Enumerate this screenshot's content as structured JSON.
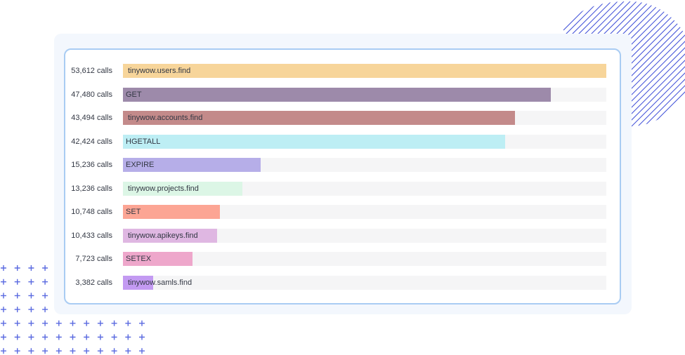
{
  "chart_data": {
    "type": "bar",
    "orientation": "horizontal",
    "value_suffix": " calls",
    "max_value": 53612,
    "series": [
      {
        "name": "tinywow.users.find",
        "value": 53612,
        "value_label": "53,612 calls",
        "color": "#f7d59a"
      },
      {
        "name": "GET",
        "value": 47480,
        "value_label": "47,480 calls",
        "color": "#9d8aaa"
      },
      {
        "name": "tinywow.accounts.find",
        "value": 43494,
        "value_label": "43,494 calls",
        "color": "#c38a8a"
      },
      {
        "name": "HGETALL",
        "value": 42424,
        "value_label": "42,424 calls",
        "color": "#bdeef4"
      },
      {
        "name": "EXPIRE",
        "value": 15236,
        "value_label": "15,236 calls",
        "color": "#b6aee8"
      },
      {
        "name": "tinywow.projects.find",
        "value": 13236,
        "value_label": "13,236 calls",
        "color": "#dcf6e6"
      },
      {
        "name": "SET",
        "value": 10748,
        "value_label": "10,748 calls",
        "color": "#fca594"
      },
      {
        "name": "tinywow.apikeys.find",
        "value": 10433,
        "value_label": "10,433 calls",
        "color": "#dfb7e2"
      },
      {
        "name": "SETEX",
        "value": 7723,
        "value_label": "7,723 calls",
        "color": "#eea7cb"
      },
      {
        "name": "tinywow.samls.find",
        "value": 3382,
        "value_label": "3,382 calls",
        "color": "#c39af2"
      }
    ]
  },
  "decor": {
    "circle_stripe_color": "#3f4fd8",
    "plus_color": "#5a6ae0",
    "icon": "plus-icon"
  }
}
